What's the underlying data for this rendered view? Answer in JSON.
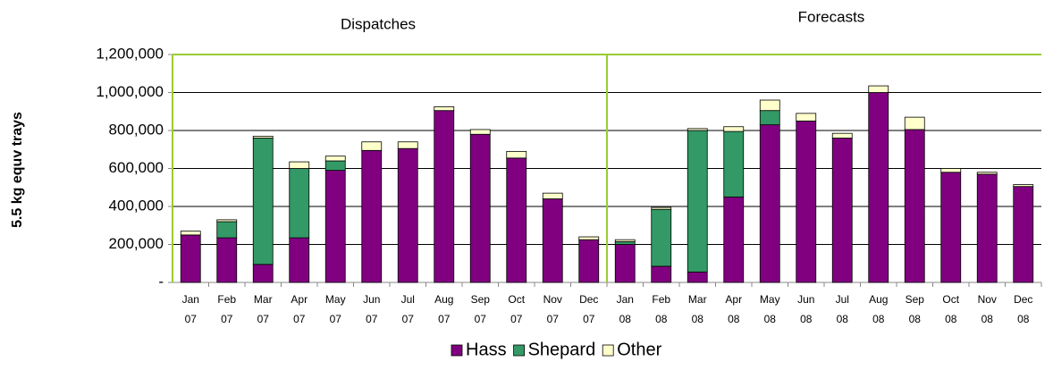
{
  "chart_data": {
    "type": "bar",
    "stacked": true,
    "annotations": [
      "Dispatches",
      "Forecasts"
    ],
    "y_label": "5.5 kg equv trays",
    "categories": [
      "Jan 07",
      "Feb 07",
      "Mar 07",
      "Apr 07",
      "May 07",
      "Jun 07",
      "Jul 07",
      "Aug 07",
      "Sep 07",
      "Oct 07",
      "Nov 07",
      "Dec 07",
      "Jan 08",
      "Feb 08",
      "Mar 08",
      "Apr 08",
      "May 08",
      "Jun 08",
      "Jul 08",
      "Aug 08",
      "Sep 08",
      "Oct 08",
      "Nov 08",
      "Dec 08"
    ],
    "series": [
      {
        "name": "Hass",
        "color": "#800080",
        "values": [
          250000,
          235000,
          95000,
          235000,
          590000,
          695000,
          705000,
          905000,
          780000,
          655000,
          440000,
          225000,
          200000,
          85000,
          55000,
          450000,
          830000,
          850000,
          760000,
          1000000,
          805000,
          580000,
          570000,
          505000
        ]
      },
      {
        "name": "Shepard",
        "color": "#339966",
        "values": [
          0,
          85000,
          665000,
          365000,
          50000,
          0,
          0,
          0,
          0,
          0,
          0,
          0,
          15000,
          300000,
          745000,
          345000,
          75000,
          0,
          0,
          0,
          0,
          0,
          0,
          0
        ]
      },
      {
        "name": "Other",
        "color": "#ffffcc",
        "values": [
          20000,
          10000,
          10000,
          35000,
          25000,
          45000,
          35000,
          20000,
          25000,
          35000,
          30000,
          15000,
          10000,
          10000,
          10000,
          25000,
          55000,
          40000,
          25000,
          35000,
          65000,
          20000,
          10000,
          10000
        ]
      }
    ],
    "ylim": [
      0,
      1200000
    ],
    "yticks": [
      {
        "value": 0,
        "label": "-"
      },
      {
        "value": 200000,
        "label": "200,000"
      },
      {
        "value": 400000,
        "label": "400,000"
      },
      {
        "value": 600000,
        "label": "600,000"
      },
      {
        "value": 800000,
        "label": "800,000"
      },
      {
        "value": 1000000,
        "label": "1,000,000"
      },
      {
        "value": 1200000,
        "label": "1,200,000"
      }
    ],
    "grid": true,
    "legend": "bottom"
  }
}
